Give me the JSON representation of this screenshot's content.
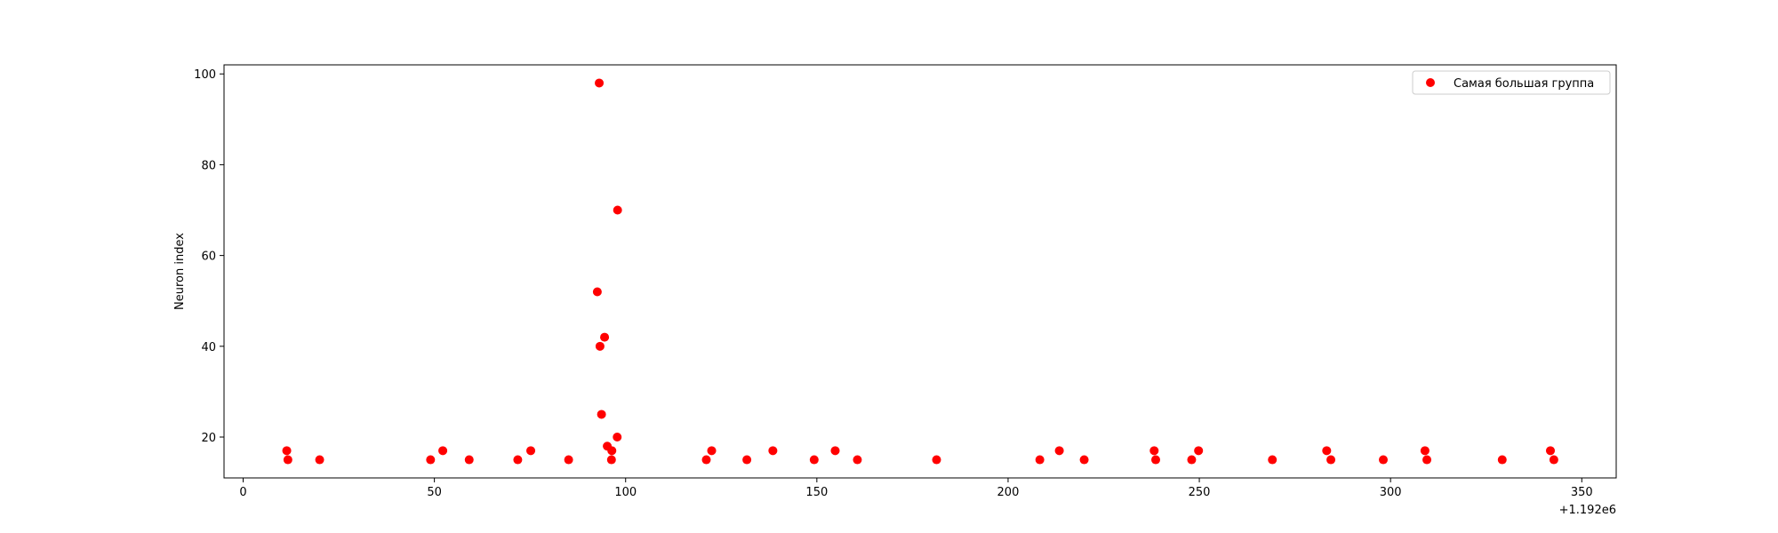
{
  "chart_data": {
    "type": "scatter",
    "title": "",
    "xlabel": "",
    "ylabel": "Neuron index",
    "x_offset_label": "+1.192e6",
    "xlim": [
      -5,
      359
    ],
    "ylim": [
      11,
      102
    ],
    "x_ticks": [
      0,
      50,
      100,
      150,
      200,
      250,
      300,
      350
    ],
    "y_ticks": [
      20,
      40,
      60,
      80,
      100
    ],
    "grid": false,
    "legend_position": "top-right",
    "series": [
      {
        "name": "Самая большая группа",
        "color": "#ff0000",
        "marker": "circle",
        "points": [
          {
            "x": 11.4,
            "y": 17
          },
          {
            "x": 11.7,
            "y": 15
          },
          {
            "x": 20.0,
            "y": 15
          },
          {
            "x": 49.0,
            "y": 15
          },
          {
            "x": 52.2,
            "y": 17
          },
          {
            "x": 59.1,
            "y": 15
          },
          {
            "x": 71.8,
            "y": 15
          },
          {
            "x": 75.2,
            "y": 17
          },
          {
            "x": 85.1,
            "y": 15
          },
          {
            "x": 93.1,
            "y": 98
          },
          {
            "x": 92.6,
            "y": 52
          },
          {
            "x": 97.9,
            "y": 70
          },
          {
            "x": 94.5,
            "y": 42
          },
          {
            "x": 93.3,
            "y": 40
          },
          {
            "x": 93.7,
            "y": 25
          },
          {
            "x": 97.8,
            "y": 20
          },
          {
            "x": 95.2,
            "y": 18
          },
          {
            "x": 96.4,
            "y": 17
          },
          {
            "x": 96.3,
            "y": 15
          },
          {
            "x": 121.1,
            "y": 15
          },
          {
            "x": 122.5,
            "y": 17
          },
          {
            "x": 131.7,
            "y": 15
          },
          {
            "x": 138.5,
            "y": 17
          },
          {
            "x": 149.3,
            "y": 15
          },
          {
            "x": 154.8,
            "y": 17
          },
          {
            "x": 160.6,
            "y": 15
          },
          {
            "x": 181.3,
            "y": 15
          },
          {
            "x": 208.3,
            "y": 15
          },
          {
            "x": 213.4,
            "y": 17
          },
          {
            "x": 219.9,
            "y": 15
          },
          {
            "x": 238.2,
            "y": 17
          },
          {
            "x": 238.6,
            "y": 15
          },
          {
            "x": 248.0,
            "y": 15
          },
          {
            "x": 249.8,
            "y": 17
          },
          {
            "x": 269.1,
            "y": 15
          },
          {
            "x": 283.3,
            "y": 17
          },
          {
            "x": 284.4,
            "y": 15
          },
          {
            "x": 298.1,
            "y": 15
          },
          {
            "x": 309.0,
            "y": 17
          },
          {
            "x": 309.5,
            "y": 15
          },
          {
            "x": 329.2,
            "y": 15
          },
          {
            "x": 341.8,
            "y": 17
          },
          {
            "x": 342.7,
            "y": 15
          }
        ]
      }
    ]
  }
}
